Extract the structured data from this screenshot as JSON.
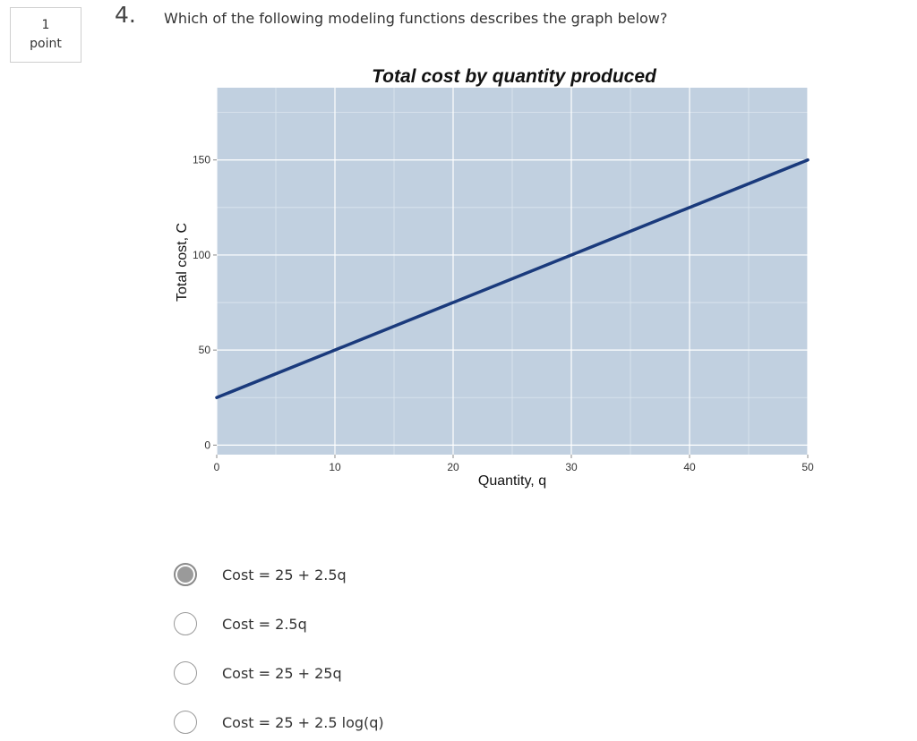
{
  "points": {
    "value": "1",
    "unit": "point"
  },
  "question": {
    "number": "4.",
    "text": "Which of the following modeling functions describes the graph below?"
  },
  "chart_data": {
    "type": "line",
    "title": "Total cost by quantity produced",
    "xlabel": "Quantity, q",
    "ylabel": "Total cost, C",
    "xlim": [
      0,
      50
    ],
    "ylim": [
      -5,
      188
    ],
    "x_ticks": [
      0,
      10,
      20,
      30,
      40,
      50
    ],
    "y_ticks": [
      0,
      50,
      100,
      150
    ],
    "grid": true,
    "series": [
      {
        "x": [
          0,
          10,
          20,
          30,
          40,
          50
        ],
        "y": [
          25,
          50,
          75,
          100,
          125,
          150
        ],
        "color": "#1a3a7c"
      }
    ]
  },
  "options": [
    {
      "label": "Cost = 25 + 2.5q",
      "selected": true
    },
    {
      "label": "Cost = 2.5q",
      "selected": false
    },
    {
      "label": "Cost = 25 + 25q",
      "selected": false
    },
    {
      "label": "Cost = 25 + 2.5 log(q)",
      "selected": false
    }
  ]
}
